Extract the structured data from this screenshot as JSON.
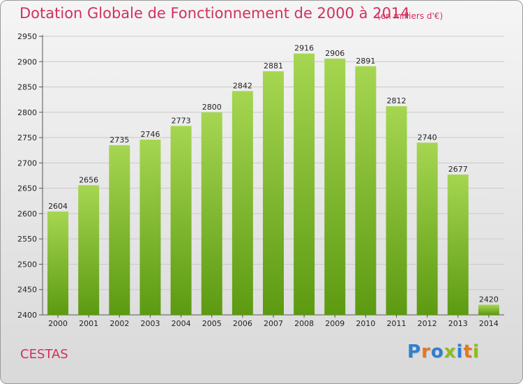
{
  "header": {
    "title": "Dotation Globale de Fonctionnement de 2000 à 2014",
    "unit": "(en milliers d'€)"
  },
  "footer": {
    "commune": "CESTAS",
    "logo": "Proxiti"
  },
  "colors": {
    "title": "#d1305e",
    "bar_top": "#a6d651",
    "bar_bottom": "#5c9a12",
    "logo": [
      "#2e7fd0",
      "#e8761c",
      "#2e7fd0",
      "#8bbd1a",
      "#2e7fd0",
      "#e8761c",
      "#8bbd1a"
    ]
  },
  "chart_data": {
    "type": "bar",
    "categories": [
      "2000",
      "2001",
      "2002",
      "2003",
      "2004",
      "2005",
      "2006",
      "2007",
      "2008",
      "2009",
      "2010",
      "2011",
      "2012",
      "2013",
      "2014"
    ],
    "values": [
      2604,
      2656,
      2735,
      2746,
      2773,
      2800,
      2842,
      2881,
      2916,
      2906,
      2891,
      2812,
      2740,
      2677,
      2420
    ],
    "title": "Dotation Globale de Fonctionnement de 2000 à 2014",
    "xlabel": "",
    "ylabel": "",
    "ylim": [
      2400,
      2950
    ],
    "yticks": [
      2400,
      2450,
      2500,
      2550,
      2600,
      2650,
      2700,
      2750,
      2800,
      2850,
      2900,
      2950
    ],
    "grid": true,
    "legend": "none"
  }
}
